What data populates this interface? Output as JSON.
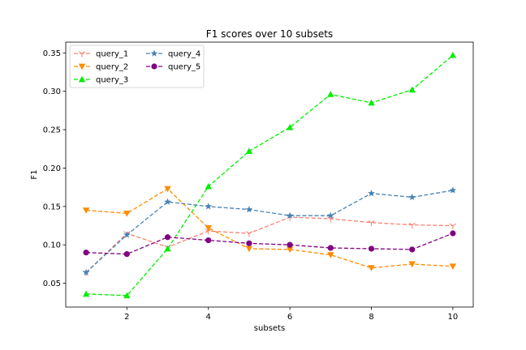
{
  "chart_data": {
    "type": "line",
    "title": "F1 scores over 10 subsets",
    "xlabel": "subsets",
    "ylabel": "F1",
    "x": [
      1,
      2,
      3,
      4,
      5,
      6,
      7,
      8,
      9,
      10
    ],
    "xlim": [
      0.5,
      10.5
    ],
    "ylim": [
      0.019,
      0.364
    ],
    "xticks": [
      2,
      4,
      6,
      8,
      10
    ],
    "yticks": [
      0.05,
      0.1,
      0.15,
      0.2,
      0.25,
      0.3,
      0.35
    ],
    "xtick_labels": [
      "2",
      "4",
      "6",
      "8",
      "10"
    ],
    "ytick_labels": [
      "0.05",
      "0.10",
      "0.15",
      "0.20",
      "0.25",
      "0.30",
      "0.35"
    ],
    "grid": false,
    "legend_position": "top-left",
    "series": [
      {
        "name": "query_1",
        "color": "#fa8072",
        "marker": "tri-down",
        "values": [
          0.064,
          0.115,
          0.097,
          0.118,
          0.115,
          0.136,
          0.134,
          0.129,
          0.126,
          0.125
        ]
      },
      {
        "name": "query_2",
        "color": "#ff8c00",
        "marker": "triangle-down",
        "values": [
          0.145,
          0.141,
          0.173,
          0.122,
          0.095,
          0.094,
          0.087,
          0.07,
          0.075,
          0.072
        ]
      },
      {
        "name": "query_3",
        "color": "#00ee00",
        "marker": "triangle-up",
        "values": [
          0.036,
          0.034,
          0.095,
          0.176,
          0.222,
          0.253,
          0.296,
          0.285,
          0.302,
          0.347
        ]
      },
      {
        "name": "query_4",
        "color": "#4682b4",
        "marker": "star",
        "values": [
          0.064,
          0.113,
          0.156,
          0.15,
          0.146,
          0.138,
          0.138,
          0.167,
          0.162,
          0.171
        ]
      },
      {
        "name": "query_5",
        "color": "#800080",
        "marker": "circle",
        "values": [
          0.09,
          0.088,
          0.11,
          0.106,
          0.102,
          0.1,
          0.096,
          0.095,
          0.094,
          0.115
        ]
      }
    ]
  }
}
